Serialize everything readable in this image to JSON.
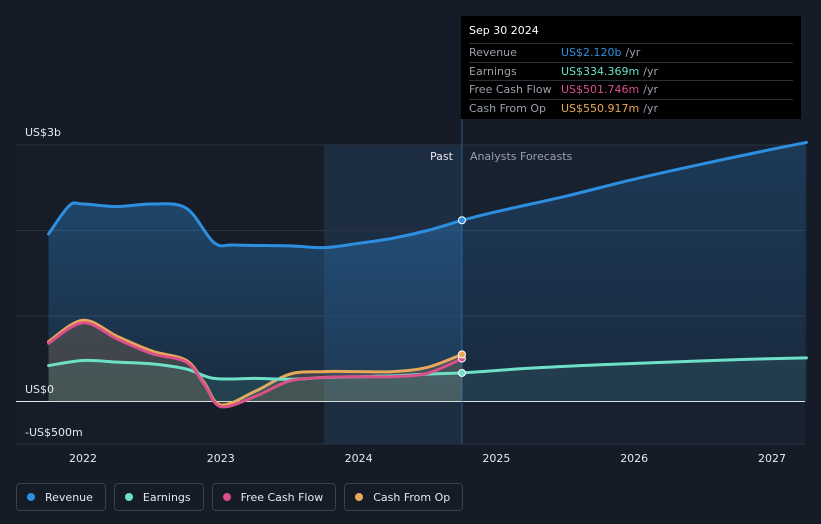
{
  "tooltip": {
    "date": "Sep 30 2024",
    "rows": [
      {
        "label": "Revenue",
        "value": "US$2.120b",
        "unit": "/yr",
        "color": "#2d8fe0"
      },
      {
        "label": "Earnings",
        "value": "US$334.369m",
        "unit": "/yr",
        "color": "#6ee0c8"
      },
      {
        "label": "Free Cash Flow",
        "value": "US$501.746m",
        "unit": "/yr",
        "color": "#d9508a"
      },
      {
        "label": "Cash From Op",
        "value": "US$550.917m",
        "unit": "/yr",
        "color": "#e8a85a"
      }
    ]
  },
  "periods": {
    "past": "Past",
    "forecast": "Analysts Forecasts"
  },
  "legend": [
    {
      "label": "Revenue",
      "color": "#2d8fe0"
    },
    {
      "label": "Earnings",
      "color": "#6ee0c8"
    },
    {
      "label": "Free Cash Flow",
      "color": "#d9508a"
    },
    {
      "label": "Cash From Op",
      "color": "#e8a85a"
    }
  ],
  "chart_data": {
    "type": "area",
    "y_axis_labels": [
      {
        "value": 3000,
        "label": "US$3b"
      },
      {
        "value": 0,
        "label": "US$0"
      },
      {
        "value": -500,
        "label": "-US$500m"
      }
    ],
    "ylim": [
      -500,
      3000
    ],
    "xlim": [
      2021.7,
      2027.25
    ],
    "x_ticks": [
      2022,
      2023,
      2024,
      2025,
      2026,
      2027
    ],
    "divider_x": 2024.75,
    "shaded_start_x": 2023.75,
    "grid": true,
    "series": [
      {
        "name": "Revenue",
        "color": "#2d8fe0",
        "fill": true,
        "points": [
          [
            2021.75,
            1960
          ],
          [
            2021.9,
            2290
          ],
          [
            2022.0,
            2310
          ],
          [
            2022.25,
            2280
          ],
          [
            2022.5,
            2310
          ],
          [
            2022.75,
            2260
          ],
          [
            2022.95,
            1860
          ],
          [
            2023.1,
            1830
          ],
          [
            2023.5,
            1820
          ],
          [
            2023.75,
            1800
          ],
          [
            2024.0,
            1850
          ],
          [
            2024.25,
            1910
          ],
          [
            2024.5,
            2000
          ],
          [
            2024.75,
            2120
          ]
        ]
      },
      {
        "name": "Revenue forecast",
        "color": "#2d8fe0",
        "fill": true,
        "points": [
          [
            2024.75,
            2120
          ],
          [
            2025.0,
            2220
          ],
          [
            2025.5,
            2400
          ],
          [
            2026.0,
            2600
          ],
          [
            2026.5,
            2780
          ],
          [
            2027.0,
            2950
          ],
          [
            2027.25,
            3030
          ]
        ]
      },
      {
        "name": "Earnings",
        "color": "#6ee0c8",
        "fill": true,
        "points": [
          [
            2021.75,
            420
          ],
          [
            2022.0,
            480
          ],
          [
            2022.25,
            460
          ],
          [
            2022.5,
            440
          ],
          [
            2022.75,
            380
          ],
          [
            2022.95,
            270
          ],
          [
            2023.25,
            270
          ],
          [
            2023.5,
            260
          ],
          [
            2023.75,
            280
          ],
          [
            2024.0,
            290
          ],
          [
            2024.25,
            300
          ],
          [
            2024.5,
            320
          ],
          [
            2024.75,
            334
          ]
        ]
      },
      {
        "name": "Earnings forecast",
        "color": "#6ee0c8",
        "fill": true,
        "points": [
          [
            2024.75,
            334
          ],
          [
            2025.25,
            390
          ],
          [
            2025.75,
            430
          ],
          [
            2026.25,
            460
          ],
          [
            2026.75,
            490
          ],
          [
            2027.25,
            510
          ]
        ]
      },
      {
        "name": "Free Cash Flow",
        "color": "#d9508a",
        "fill": false,
        "points": [
          [
            2021.75,
            680
          ],
          [
            2022.0,
            920
          ],
          [
            2022.25,
            730
          ],
          [
            2022.5,
            560
          ],
          [
            2022.75,
            460
          ],
          [
            2022.88,
            200
          ],
          [
            2023.0,
            -60
          ],
          [
            2023.25,
            60
          ],
          [
            2023.5,
            240
          ],
          [
            2023.75,
            280
          ],
          [
            2024.0,
            290
          ],
          [
            2024.25,
            290
          ],
          [
            2024.5,
            330
          ],
          [
            2024.75,
            502
          ]
        ]
      },
      {
        "name": "Cash From Op",
        "color": "#e8a85a",
        "fill": true,
        "points": [
          [
            2021.75,
            700
          ],
          [
            2022.0,
            950
          ],
          [
            2022.25,
            760
          ],
          [
            2022.5,
            590
          ],
          [
            2022.75,
            480
          ],
          [
            2022.88,
            220
          ],
          [
            2023.0,
            -40
          ],
          [
            2023.25,
            120
          ],
          [
            2023.5,
            320
          ],
          [
            2023.75,
            350
          ],
          [
            2024.0,
            350
          ],
          [
            2024.25,
            350
          ],
          [
            2024.5,
            400
          ],
          [
            2024.75,
            551
          ]
        ]
      }
    ],
    "markers": [
      {
        "x": 2024.75,
        "y": 2120,
        "color": "#2d8fe0"
      },
      {
        "x": 2024.75,
        "y": 334,
        "color": "#6ee0c8"
      },
      {
        "x": 2024.75,
        "y": 502,
        "color": "#d9508a"
      },
      {
        "x": 2024.75,
        "y": 551,
        "color": "#e8a85a"
      }
    ]
  }
}
